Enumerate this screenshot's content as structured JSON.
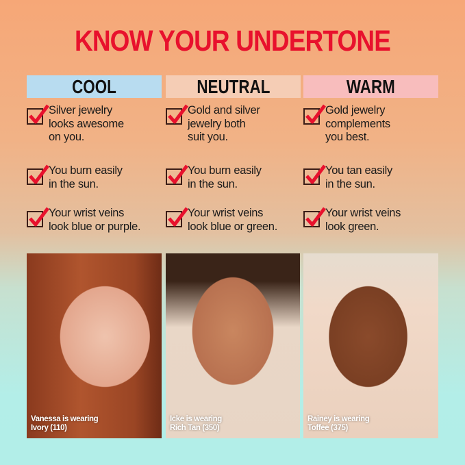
{
  "title": "KNOW YOUR UNDERTONE",
  "colors": {
    "title": "#e8112d",
    "cool": "#b8dcf0",
    "neutral": "#f5cdb5",
    "warm": "#f8bdbd",
    "check": "#e8112d"
  },
  "columns": [
    {
      "header": "COOL",
      "items": [
        "Silver jewelry\nlooks awesome\non you.",
        "You burn easily\nin the sun.",
        "Your wrist veins\nlook blue or purple."
      ],
      "caption_line1": "Vanessa is wearing",
      "caption_line2": "Ivory (110)"
    },
    {
      "header": "NEUTRAL",
      "items": [
        "Gold and silver\njewelry both\nsuit you.",
        "You burn easily\nin the sun.",
        "Your wrist veins\nlook blue or green."
      ],
      "caption_line1": "Icke is wearing",
      "caption_line2": "Rich Tan (350)"
    },
    {
      "header": "WARM",
      "items": [
        "Gold jewelry\ncomplements\nyou best.",
        "You tan easily\nin the sun.",
        "Your wrist veins\nlook green."
      ],
      "caption_line1": "Rainey is wearing",
      "caption_line2": "Toffee (375)"
    }
  ]
}
